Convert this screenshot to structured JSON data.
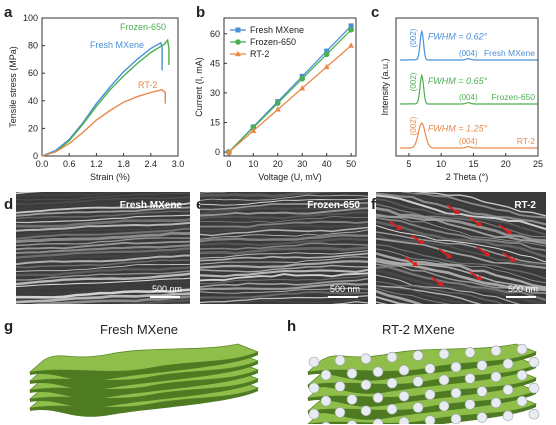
{
  "panels": {
    "a": "a",
    "b": "b",
    "c": "c",
    "d": "d",
    "e": "e",
    "f": "f",
    "g": "g",
    "h": "h"
  },
  "chart_data": [
    {
      "id": "a",
      "type": "line",
      "xlabel": "Strain (%)",
      "ylabel": "Tensile stress (MPa)",
      "xlim": [
        0,
        3.0
      ],
      "ylim": [
        0,
        100
      ],
      "xticks": [
        "0.0",
        "0.6",
        "1.2",
        "1.8",
        "2.4",
        "3.0"
      ],
      "yticks": [
        "0",
        "20",
        "40",
        "60",
        "80",
        "100"
      ],
      "series": [
        {
          "name": "Fresh MXene",
          "color": "#4a90d9",
          "x": [
            0,
            0.3,
            0.6,
            0.9,
            1.2,
            1.5,
            1.8,
            2.1,
            2.4,
            2.62,
            2.65,
            2.65
          ],
          "y": [
            0,
            4,
            12,
            24,
            38,
            50,
            61,
            70,
            78,
            82,
            79,
            62
          ]
        },
        {
          "name": "Frozen-650",
          "color": "#4caf50",
          "x": [
            0,
            0.3,
            0.6,
            0.9,
            1.2,
            1.5,
            1.8,
            2.1,
            2.4,
            2.7,
            2.77,
            2.8,
            2.8
          ],
          "y": [
            0,
            3,
            11,
            23,
            36,
            48,
            58,
            67,
            75,
            81,
            84,
            78,
            66
          ]
        },
        {
          "name": "RT-2",
          "color": "#e8894a",
          "x": [
            0,
            0.3,
            0.6,
            0.9,
            1.2,
            1.5,
            1.8,
            2.1,
            2.4,
            2.65,
            2.72,
            2.72
          ],
          "y": [
            0,
            3,
            9,
            17,
            26,
            33,
            39,
            43,
            46,
            48,
            46,
            38
          ]
        }
      ]
    },
    {
      "id": "b",
      "type": "line",
      "xlabel": "Voltage (U, mV)",
      "ylabel": "Current (I, mA)",
      "xlim": [
        -2,
        52
      ],
      "ylim": [
        -2,
        68
      ],
      "xticks": [
        "0",
        "10",
        "20",
        "30",
        "40",
        "50"
      ],
      "yticks": [
        "0",
        "15",
        "30",
        "45",
        "60"
      ],
      "legend": "top-left",
      "series": [
        {
          "name": "Fresh MXene",
          "color": "#4a90d9",
          "marker": "square",
          "x": [
            0,
            10,
            20,
            30,
            40,
            50
          ],
          "y": [
            0,
            12.8,
            25.6,
            38.4,
            51.2,
            64
          ]
        },
        {
          "name": "Frozen-650",
          "color": "#4caf50",
          "marker": "circle",
          "x": [
            0,
            10,
            20,
            30,
            40,
            50
          ],
          "y": [
            0,
            12.4,
            24.8,
            37.2,
            49.6,
            62
          ]
        },
        {
          "name": "RT-2",
          "color": "#e8894a",
          "marker": "triangle",
          "x": [
            0,
            10,
            20,
            30,
            40,
            50
          ],
          "y": [
            0,
            10.8,
            21.6,
            32.4,
            43.2,
            54
          ]
        }
      ]
    },
    {
      "id": "c",
      "type": "line",
      "xlabel": "2 Theta (°)",
      "ylabel": "Intensity (a.u.)",
      "xlim": [
        3,
        25
      ],
      "xticks": [
        "5",
        "10",
        "15",
        "20",
        "25"
      ],
      "series": [
        {
          "name": "Fresh MXene",
          "color": "#4a90d9",
          "peak_label": "(002)",
          "fwhm_label": "FWHM = 0.62°",
          "secondary_label": "(004)",
          "peak_x": 7.0,
          "fwhm": 0.62,
          "offset": 2
        },
        {
          "name": "Frozen-650",
          "color": "#4caf50",
          "peak_label": "(002)",
          "fwhm_label": "FWHM = 0.65°",
          "secondary_label": "(004)",
          "peak_x": 7.0,
          "fwhm": 0.65,
          "offset": 1
        },
        {
          "name": "RT-2",
          "color": "#e8894a",
          "peak_label": "(002)",
          "fwhm_label": "FWHM = 1.25°",
          "secondary_label": "(004)",
          "peak_x": 7.0,
          "fwhm": 1.25,
          "offset": 0
        }
      ]
    }
  ],
  "sem": {
    "d": {
      "label": "Fresh MXene",
      "scale": "500 nm"
    },
    "e": {
      "label": "Frozen-650",
      "scale": "500 nm"
    },
    "f": {
      "label": "RT-2",
      "scale": "500 nm"
    }
  },
  "models": {
    "g": {
      "title": "Fresh MXene"
    },
    "h": {
      "title": "RT-2 MXene"
    }
  },
  "colors": {
    "fresh": "#4a90d9",
    "frozen": "#4caf50",
    "rt2": "#e8894a",
    "sheet": "#8fbf4a",
    "arrow": "#e02020"
  }
}
